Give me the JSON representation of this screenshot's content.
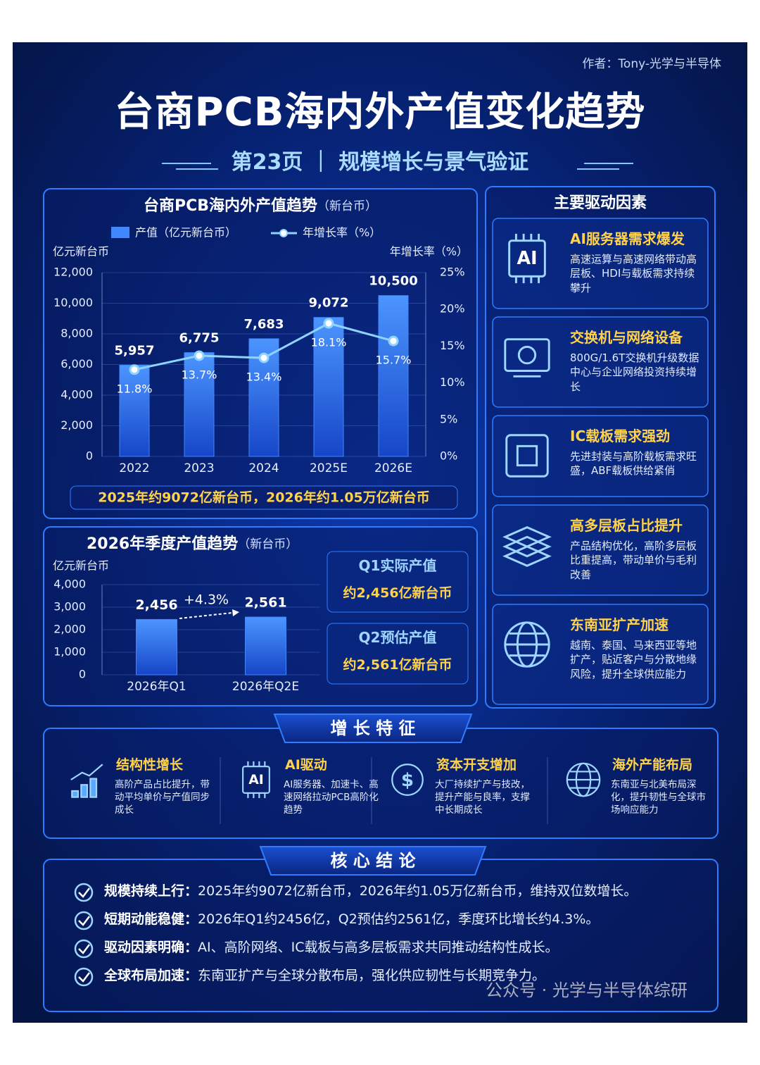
{
  "author": "作者：Tony-光学与半导体",
  "header": {
    "title": "台商PCB海内外产值变化趋势",
    "subtitle": "第23页 ｜ 规模增长与景气验证"
  },
  "chart_data": [
    {
      "type": "bar_line",
      "title": "台商PCB海内外产值趋势",
      "title_unit": "（新台币）",
      "y_label": "亿元新台币",
      "y2_label": "年增长率（%）",
      "categories": [
        "2022",
        "2023",
        "2024",
        "2025E",
        "2026E"
      ],
      "series": [
        {
          "name": "产值（亿元新台币）",
          "color": "#3f86ff",
          "values": [
            5957,
            6775,
            7683,
            9072,
            10500
          ],
          "value_labels": [
            "5,957",
            "6,775",
            "7,683",
            "9,072",
            "10,500"
          ]
        },
        {
          "name": "年增长率（%）",
          "color": "#8fd4ff",
          "axis": "y2",
          "values": [
            11.8,
            13.7,
            13.4,
            18.1,
            15.7
          ],
          "value_labels": [
            "11.8%",
            "13.7%",
            "13.4%",
            "18.1%",
            "15.7%"
          ]
        }
      ],
      "ylim": [
        0,
        12000
      ],
      "yticks": [
        0,
        {
          "value": 2000,
          "label": "2,000"
        },
        {
          "value": 4000,
          "label": "4,000"
        },
        {
          "value": 6000,
          "label": "6,000"
        },
        {
          "value": 8000,
          "label": "8,000"
        },
        {
          "value": 10000,
          "label": "10,000"
        },
        {
          "value": 12000,
          "label": "12,000"
        }
      ],
      "y2lim": [
        0,
        25
      ],
      "y2ticks": [
        {
          "value": 0,
          "label": "0%"
        },
        {
          "value": 5,
          "label": "5%"
        },
        {
          "value": 10,
          "label": "10%"
        },
        {
          "value": 15,
          "label": "15%"
        },
        {
          "value": 20,
          "label": "20%"
        },
        {
          "value": 25,
          "label": "25%"
        }
      ],
      "grid": true,
      "note": "2025年约9072亿新台币，2026年约1.05万亿新台币"
    },
    {
      "type": "bar",
      "title": "2026年季度产值趋势",
      "title_unit": "（新台币）",
      "y_label": "亿元新台币",
      "categories": [
        "2026年Q1",
        "2026年Q2E"
      ],
      "values": [
        2456,
        2561
      ],
      "value_labels": [
        "2,456",
        "2,561"
      ],
      "color": "#3f86ff",
      "ylim": [
        0,
        4000
      ],
      "yticks": [
        0,
        {
          "value": 1000,
          "label": "1,000"
        },
        {
          "value": 2000,
          "label": "2,000"
        },
        {
          "value": 3000,
          "label": "3,000"
        },
        {
          "value": 4000,
          "label": "4,000"
        }
      ],
      "grid": true,
      "annotation": "+4.3%"
    }
  ],
  "quarter_cards": [
    {
      "title": "Q1实际产值",
      "value": "约2,456亿新台币"
    },
    {
      "title": "Q2预估产值",
      "value": "约2,561亿新台币"
    }
  ],
  "drivers": {
    "title": "主要驱动因素",
    "items": [
      {
        "icon_label": "AI",
        "title": "AI服务器需求爆发",
        "desc": "高速运算与高速网络带动高层板、HDI与载板需求持续攀升"
      },
      {
        "title": "交换机与网络设备",
        "desc": "800G/1.6T交换机升级数据中心与企业网络投资持续增长"
      },
      {
        "title": "IC载板需求强劲",
        "desc": "先进封装与高阶载板需求旺盛，ABF载板供给紧俏"
      },
      {
        "title": "高多层板占比提升",
        "desc": "产品结构优化，高阶多层板比重提高，带动单价与毛利改善"
      },
      {
        "title": "东南亚扩产加速",
        "desc": "越南、泰国、马来西亚等地扩产，贴近客户与分散地缘风险，提升全球供应能力"
      }
    ]
  },
  "features": {
    "title": "增 长 特 征",
    "items": [
      {
        "title": "结构性增长",
        "desc": "高阶产品占比提升，带动平均单价与产值同步成长"
      },
      {
        "icon_label": "AI",
        "title": "AI驱动",
        "desc": "AI服务器、加速卡、高速网络拉动PCB高阶化趋势"
      },
      {
        "title": "资本开支增加",
        "desc": "大厂持续扩产与技改，提升产能与良率，支撑中长期成长"
      },
      {
        "title": "海外产能布局",
        "desc": "东南亚与北美布局深化，提升韧性与全球市场响应能力"
      }
    ]
  },
  "conclusions": {
    "title": "核 心 结 论",
    "items": [
      {
        "label": "规模持续上行：",
        "text": "2025年约9072亿新台币，2026年约1.05万亿新台币，维持双位数增长。"
      },
      {
        "label": "短期动能稳健：",
        "text": "2026年Q1约2456亿，Q2预估约2561亿，季度环比增长约4.3%。"
      },
      {
        "label": "驱动因素明确：",
        "text": "AI、高阶网络、IC载板与高多层板需求共同推动结构性成长。"
      },
      {
        "label": "全球布局加速：",
        "text": "东南亚扩产与全球分散布局，强化供应韧性与长期竞争力。"
      }
    ]
  },
  "watermark": "公众号 · 光学与半导体综研"
}
